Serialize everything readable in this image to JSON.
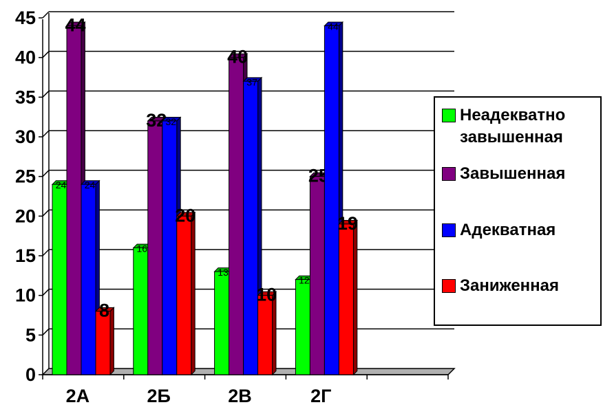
{
  "chart_data": {
    "type": "bar",
    "categories": [
      "2А",
      "2Б",
      "2В",
      "2Г"
    ],
    "series": [
      {
        "name": "Неадекватно\nзавышенная",
        "color": "#00ff00",
        "values": [
          24,
          16,
          13,
          12
        ]
      },
      {
        "name": "Завышенная",
        "color": "#800080",
        "values": [
          44,
          32,
          40,
          25
        ]
      },
      {
        "name": "Адекватная",
        "color": "#0000ff",
        "values": [
          24,
          32,
          37,
          44
        ]
      },
      {
        "name": "Заниженная",
        "color": "#ff0000",
        "values": [
          8,
          20,
          10,
          19
        ]
      }
    ],
    "data_labels": [
      [
        "24",
        "44",
        "24",
        "8"
      ],
      [
        "16",
        "32",
        "32",
        "20"
      ],
      [
        "13",
        "40",
        "37",
        "10"
      ],
      [
        "12",
        "25",
        "44",
        "19"
      ]
    ],
    "ylim": [
      0,
      45
    ],
    "yticks": [
      "0",
      "5",
      "10",
      "15",
      "20",
      "25",
      "30",
      "35",
      "40",
      "45"
    ],
    "grid": true,
    "legend": "right",
    "style": "3d-clustered-column"
  }
}
